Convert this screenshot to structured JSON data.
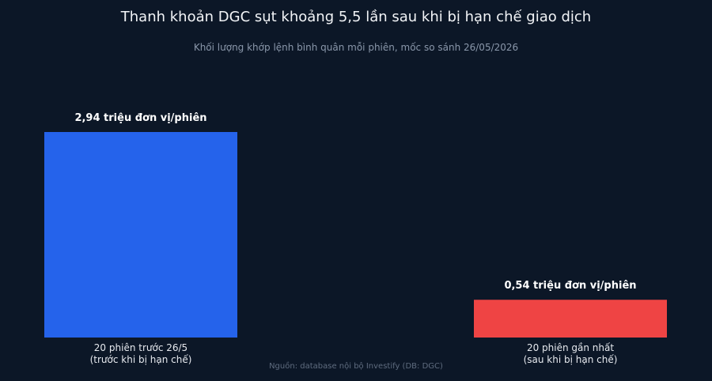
{
  "chart_data": {
    "type": "bar",
    "title": "Thanh khoản DGC sụt khoảng 5,5 lần sau khi bị hạn chế giao dịch",
    "subtitle": "Khối lượng khớp lệnh bình quân mỗi phiên, mốc so sánh 26/05/2026",
    "source": "Nguồn: database nội bộ Investify (DB: DGC)",
    "categories": [
      [
        "20 phiên trước 26/5",
        "(trước khi bị hạn chế)"
      ],
      [
        "20 phiên gần nhất",
        "(sau khi bị hạn chế)"
      ]
    ],
    "values": [
      2.94,
      0.54
    ],
    "data_labels": [
      "2,94 triệu đơn vị/phiên",
      "0,54 triệu đơn vị/phiên"
    ],
    "colors": [
      "#2563eb",
      "#ef4444"
    ],
    "ylim": [
      0,
      2.94
    ],
    "grid": false,
    "xlabel": "",
    "ylabel": ""
  }
}
